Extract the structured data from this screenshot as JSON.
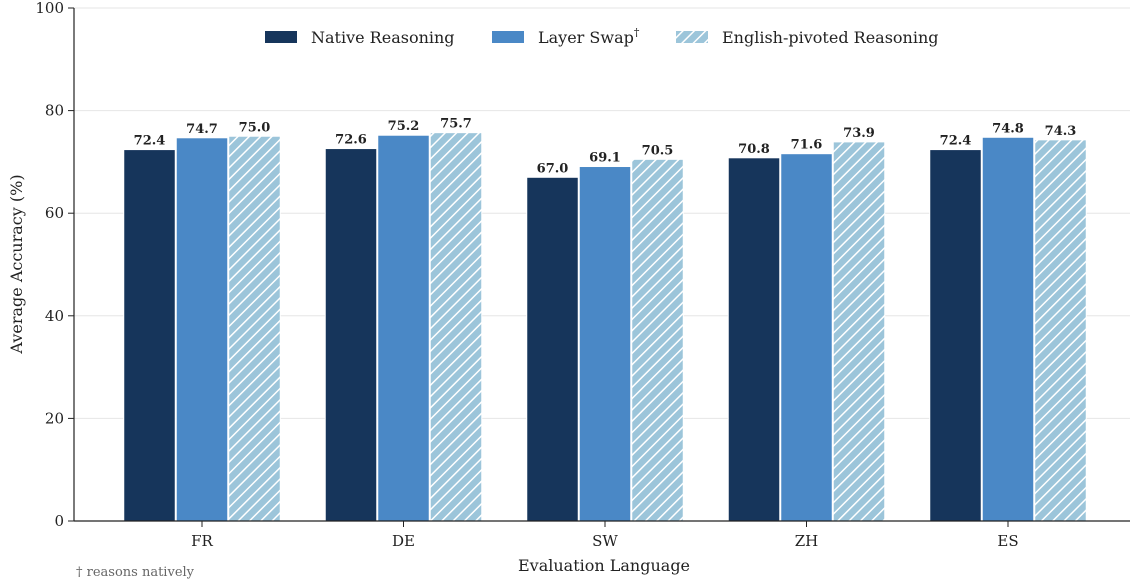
{
  "chart_data": {
    "type": "bar",
    "title": "",
    "xlabel": "Evaluation Language",
    "ylabel": "Average Accuracy (%)",
    "categories": [
      "FR",
      "DE",
      "SW",
      "ZH",
      "ES"
    ],
    "ylim": [
      0,
      100
    ],
    "yticks": [
      0,
      20,
      40,
      60,
      80,
      100
    ],
    "grid": "horizontal",
    "legend_position": "top-center",
    "series": [
      {
        "name": "Native Reasoning",
        "values": [
          72.4,
          72.6,
          67.0,
          70.8,
          72.4
        ],
        "color": "#16355b",
        "pattern": "solid"
      },
      {
        "name": "Layer Swap",
        "name_suffix": "†",
        "values": [
          74.7,
          75.2,
          69.1,
          71.6,
          74.8
        ],
        "color": "#4a88c6",
        "pattern": "solid"
      },
      {
        "name": "English-pivoted Reasoning",
        "values": [
          75.0,
          75.7,
          70.5,
          73.9,
          74.3
        ],
        "color": "#9cc5da",
        "pattern": "hatch"
      }
    ],
    "footnote": "† reasons natively"
  }
}
